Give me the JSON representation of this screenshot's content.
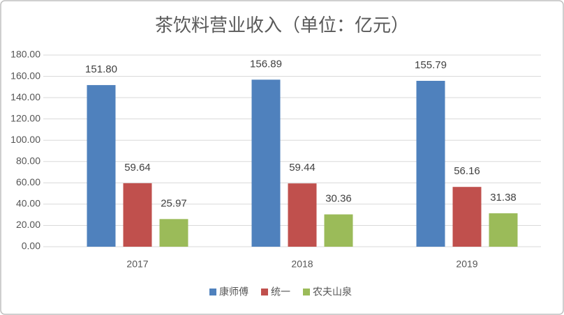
{
  "chart_data": {
    "type": "bar",
    "title": "茶饮料营业收入（单位：亿元）",
    "categories": [
      "2017",
      "2018",
      "2019"
    ],
    "series": [
      {
        "name": "康师傅",
        "color": "#4f81bd",
        "values": [
          151.8,
          156.89,
          155.79
        ],
        "value_labels": [
          "151.80",
          "156.89",
          "155.79"
        ]
      },
      {
        "name": "统一",
        "color": "#c0504d",
        "values": [
          59.64,
          59.44,
          56.16
        ],
        "value_labels": [
          "59.64",
          "59.44",
          "56.16"
        ]
      },
      {
        "name": "农夫山泉",
        "color": "#9bbb59",
        "values": [
          25.97,
          30.36,
          31.38
        ],
        "value_labels": [
          "25.97",
          "30.36",
          "31.38"
        ]
      }
    ],
    "ylim": [
      0,
      180
    ],
    "yticks": [
      {
        "value": 0,
        "label": "0.00"
      },
      {
        "value": 20,
        "label": "20.00"
      },
      {
        "value": 40,
        "label": "40.00"
      },
      {
        "value": 60,
        "label": "60.00"
      },
      {
        "value": 80,
        "label": "80.00"
      },
      {
        "value": 100,
        "label": "100.00"
      },
      {
        "value": 120,
        "label": "120.00"
      },
      {
        "value": 140,
        "label": "140.00"
      },
      {
        "value": 160,
        "label": "160.00"
      },
      {
        "value": 180,
        "label": "180.00"
      }
    ],
    "grid": true,
    "legend": "bottom"
  }
}
